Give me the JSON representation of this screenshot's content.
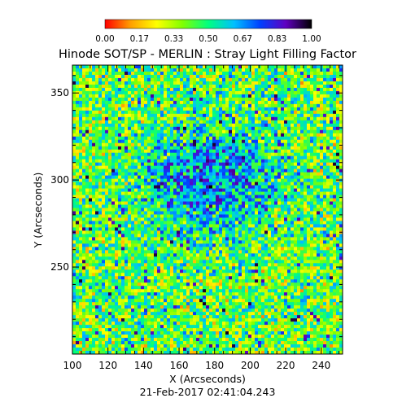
{
  "chart_data": {
    "type": "heatmap",
    "title": "Hinode SOT/SP - MERLIN : Stray Light Filling Factor",
    "xlabel": "X (Arcseconds)",
    "ylabel": "Y (Arcseconds)",
    "timestamp": "21-Feb-2017 02:41:04.243",
    "xlim": [
      100,
      252
    ],
    "ylim": [
      200,
      366
    ],
    "x_ticks": [
      100,
      120,
      140,
      160,
      180,
      200,
      220,
      240
    ],
    "y_ticks": [
      250,
      300,
      350
    ],
    "colorbar": {
      "range": [
        0.0,
        1.0
      ],
      "tick_labels": [
        "0.00",
        "0.17",
        "0.33",
        "0.50",
        "0.67",
        "0.83",
        "1.00"
      ],
      "colors": [
        "#ff0000",
        "#ffa000",
        "#ffff00",
        "#80ff00",
        "#00ff80",
        "#00c0ff",
        "#0040ff",
        "#6000c0",
        "#000000"
      ]
    },
    "field_summary": {
      "typical_value": 0.42,
      "high_value_region_center": [
        175,
        300
      ],
      "high_value_region_value": 0.72
    }
  }
}
